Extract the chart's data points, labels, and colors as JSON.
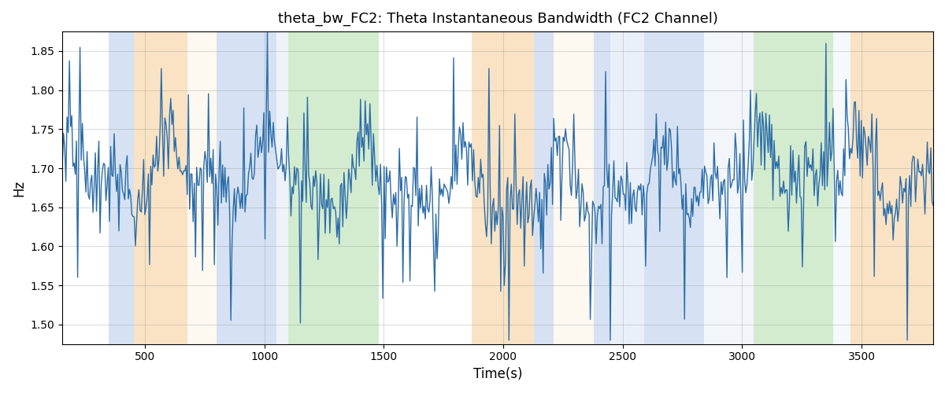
{
  "title": "theta_bw_FC2: Theta Instantaneous Bandwidth (FC2 Channel)",
  "xlabel": "Time(s)",
  "ylabel": "Hz",
  "xlim": [
    155,
    3800
  ],
  "ylim": [
    1.475,
    1.875
  ],
  "line_color": "#2b6ca8",
  "line_width": 1.0,
  "background_color": "white",
  "bands": [
    {
      "start": 350,
      "end": 455,
      "color": "#aec6e8",
      "alpha": 0.5
    },
    {
      "start": 455,
      "end": 680,
      "color": "#f5c98a",
      "alpha": 0.5
    },
    {
      "start": 680,
      "end": 800,
      "color": "#f5c98a",
      "alpha": 0.12
    },
    {
      "start": 800,
      "end": 1050,
      "color": "#aec6e8",
      "alpha": 0.5
    },
    {
      "start": 1050,
      "end": 1100,
      "color": "#aec6e8",
      "alpha": 0.2
    },
    {
      "start": 1100,
      "end": 1480,
      "color": "#a8d8a0",
      "alpha": 0.5
    },
    {
      "start": 1870,
      "end": 2130,
      "color": "#f5c98a",
      "alpha": 0.5
    },
    {
      "start": 2130,
      "end": 2210,
      "color": "#aec6e8",
      "alpha": 0.5
    },
    {
      "start": 2210,
      "end": 2380,
      "color": "#f5c98a",
      "alpha": 0.12
    },
    {
      "start": 2380,
      "end": 2450,
      "color": "#aec6e8",
      "alpha": 0.5
    },
    {
      "start": 2450,
      "end": 2590,
      "color": "#aec6e8",
      "alpha": 0.25
    },
    {
      "start": 2590,
      "end": 2840,
      "color": "#aec6e8",
      "alpha": 0.5
    },
    {
      "start": 2840,
      "end": 3050,
      "color": "#aec6e8",
      "alpha": 0.15
    },
    {
      "start": 3050,
      "end": 3380,
      "color": "#a8d8a0",
      "alpha": 0.5
    },
    {
      "start": 3380,
      "end": 3455,
      "color": "#aec6e8",
      "alpha": 0.12
    },
    {
      "start": 3455,
      "end": 3800,
      "color": "#f5c98a",
      "alpha": 0.5
    }
  ],
  "t_start": 155,
  "t_end": 3800,
  "n_points": 740
}
